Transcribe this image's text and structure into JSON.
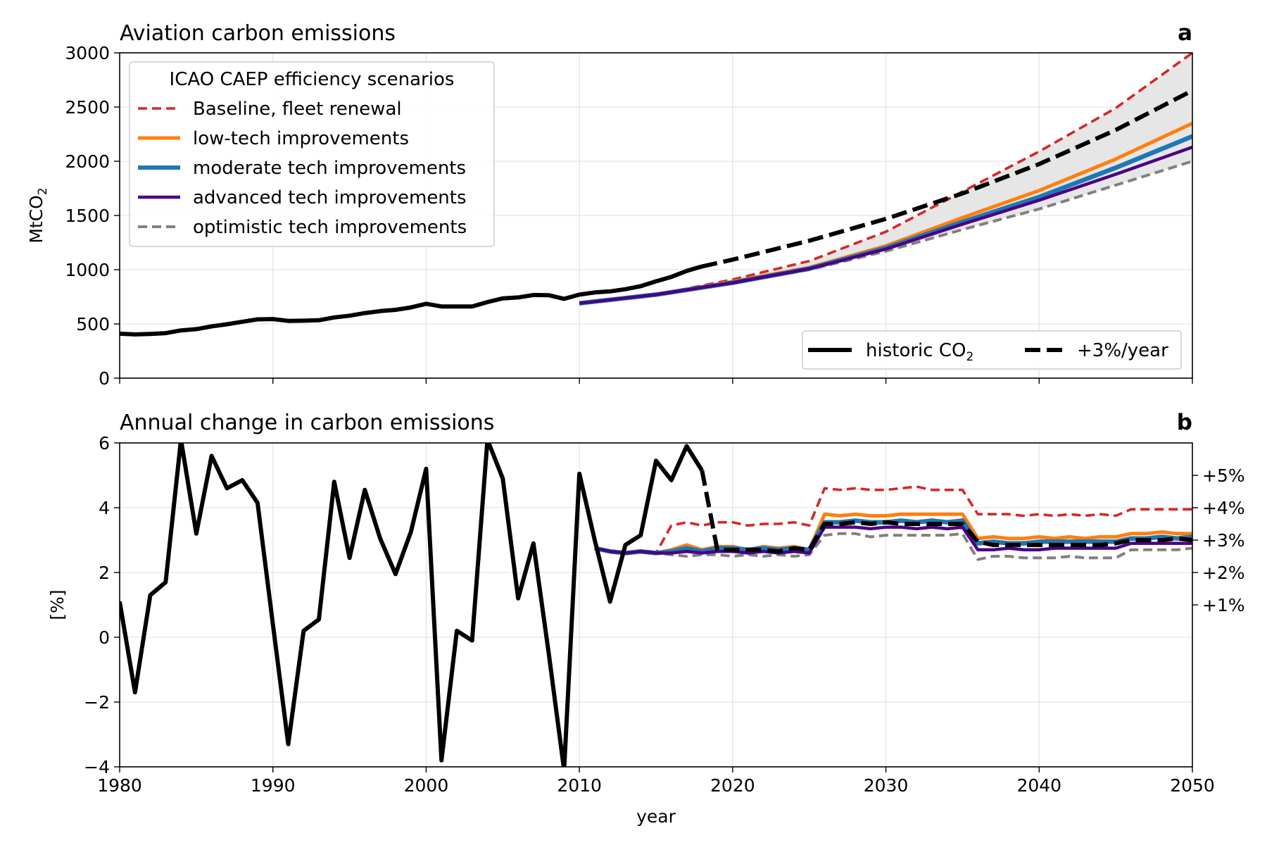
{
  "colors": {
    "historic": "#000000",
    "baseline": "#d62728",
    "low": "#ff7f0e",
    "moderate": "#1f77b4",
    "advanced": "#4b0082",
    "optimistic": "#808080",
    "band": "#e6e6e6"
  },
  "chart_data": [
    {
      "type": "line",
      "title": "Aviation carbon emissions",
      "panel_letter": "a",
      "xlabel": "",
      "ylabel": "MtCO",
      "ylabel_sub": "2",
      "xlim": [
        1980,
        2050
      ],
      "ylim": [
        0,
        3000
      ],
      "xticks": [
        1980,
        1990,
        2000,
        2010,
        2020,
        2030,
        2040,
        2050
      ],
      "yticks": [
        0,
        500,
        1000,
        1500,
        2000,
        2500,
        3000
      ],
      "grid": true,
      "legend_title": "ICAO CAEP efficiency scenarios",
      "legend_position": "top-left",
      "legend2_position": "bottom-right",
      "shaded_band": {
        "between": [
          "optimistic",
          "baseline"
        ],
        "from_year": 2010
      },
      "series": [
        {
          "name": "historic CO",
          "name_sub": "2",
          "key": "historic",
          "style": "solid",
          "x": [
            1980,
            1981,
            1982,
            1983,
            1984,
            1985,
            1986,
            1987,
            1988,
            1989,
            1990,
            1991,
            1992,
            1993,
            1994,
            1995,
            1996,
            1997,
            1998,
            1999,
            2000,
            2001,
            2002,
            2003,
            2004,
            2005,
            2006,
            2007,
            2008,
            2009,
            2010,
            2011,
            2012,
            2013,
            2014,
            2015,
            2016,
            2017,
            2018
          ],
          "y": [
            410,
            403,
            408,
            415,
            440,
            452,
            477,
            497,
            520,
            542,
            545,
            528,
            530,
            534,
            560,
            576,
            600,
            618,
            630,
            652,
            686,
            661,
            661,
            661,
            701,
            736,
            744,
            767,
            765,
            731,
            770,
            790,
            800,
            820,
            848,
            893,
            934,
            988,
            1030
          ]
        },
        {
          "name": "+3%/year",
          "key": "plus3",
          "style": "dashed",
          "x": [
            2018,
            2020,
            2025,
            2030,
            2035,
            2040,
            2045,
            2050
          ],
          "y": [
            1030,
            1093,
            1267,
            1469,
            1703,
            1974,
            2288,
            2652
          ]
        },
        {
          "name": "Baseline, fleet renewal",
          "key": "baseline",
          "style": "dashed",
          "x": [
            2010,
            2015,
            2020,
            2025,
            2030,
            2035,
            2040,
            2045,
            2050
          ],
          "y": [
            690,
            770,
            910,
            1080,
            1350,
            1720,
            2090,
            2490,
            3000
          ]
        },
        {
          "name": "low-tech improvements",
          "key": "low",
          "style": "solid",
          "x": [
            2010,
            2015,
            2020,
            2025,
            2030,
            2035,
            2040,
            2045,
            2050
          ],
          "y": [
            690,
            770,
            890,
            1020,
            1220,
            1480,
            1730,
            2020,
            2350
          ]
        },
        {
          "name": "moderate tech improvements",
          "key": "moderate",
          "style": "solid",
          "x": [
            2010,
            2015,
            2020,
            2025,
            2030,
            2035,
            2040,
            2045,
            2050
          ],
          "y": [
            690,
            770,
            880,
            1010,
            1200,
            1440,
            1670,
            1940,
            2230
          ]
        },
        {
          "name": "advanced tech improvements",
          "key": "advanced",
          "style": "solid",
          "x": [
            2010,
            2015,
            2020,
            2025,
            2030,
            2035,
            2040,
            2045,
            2050
          ],
          "y": [
            690,
            770,
            880,
            1010,
            1190,
            1420,
            1640,
            1880,
            2130
          ]
        },
        {
          "name": "optimistic tech improvements",
          "key": "optimistic",
          "style": "dashed",
          "x": [
            2010,
            2015,
            2020,
            2025,
            2030,
            2035,
            2040,
            2045,
            2050
          ],
          "y": [
            690,
            770,
            875,
            1000,
            1170,
            1370,
            1560,
            1780,
            2000
          ]
        }
      ]
    },
    {
      "type": "line",
      "title": "Annual change in carbon emissions",
      "panel_letter": "b",
      "xlabel": "year",
      "ylabel": "[%]",
      "xlim": [
        1980,
        2050
      ],
      "ylim": [
        -4,
        6
      ],
      "xticks": [
        1980,
        1990,
        2000,
        2010,
        2020,
        2030,
        2040,
        2050
      ],
      "yticks": [
        -4,
        -2,
        0,
        2,
        4,
        6
      ],
      "ytick_labels": [
        "−4",
        "−2",
        "0",
        "2",
        "4",
        "6"
      ],
      "secondary_yticks": [
        1,
        2,
        3,
        4,
        5
      ],
      "secondary_ytick_labels": [
        "+1%",
        "+2%",
        "+3%",
        "+4%",
        "+5%"
      ],
      "grid": true,
      "series": [
        {
          "key": "historic",
          "style": "solid",
          "x": [
            1980,
            1981,
            1982,
            1983,
            1984,
            1985,
            1986,
            1987,
            1988,
            1989,
            1990,
            1991,
            1992,
            1993,
            1994,
            1995,
            1996,
            1997,
            1998,
            1999,
            2000,
            2001,
            2002,
            2003,
            2004,
            2005,
            2006,
            2007,
            2008,
            2009,
            2010,
            2011,
            2012,
            2013,
            2014,
            2015,
            2016,
            2017,
            2018
          ],
          "y": [
            1.1,
            -1.7,
            1.3,
            1.7,
            6.1,
            3.2,
            5.6,
            4.6,
            4.85,
            4.15,
            0.4,
            -3.3,
            0.2,
            0.55,
            4.8,
            2.45,
            4.55,
            3.05,
            1.95,
            3.25,
            5.2,
            -3.8,
            0.2,
            -0.1,
            6.1,
            4.9,
            1.2,
            2.9,
            -0.5,
            -4.1,
            5.05,
            3.0,
            1.1,
            2.85,
            3.15,
            5.45,
            4.85,
            5.9,
            5.15
          ]
        },
        {
          "key": "plus3",
          "style": "dashed",
          "x": [
            2018,
            2019,
            2020,
            2021,
            2022,
            2023,
            2024,
            2025,
            2026,
            2027,
            2028,
            2029,
            2030,
            2031,
            2032,
            2033,
            2034,
            2035,
            2036,
            2037,
            2038,
            2039,
            2040,
            2041,
            2042,
            2043,
            2044,
            2045,
            2046,
            2047,
            2048,
            2049,
            2050
          ],
          "y": [
            5.15,
            2.7,
            2.7,
            2.7,
            2.7,
            2.65,
            2.75,
            2.7,
            3.5,
            3.5,
            3.55,
            3.5,
            3.55,
            3.5,
            3.5,
            3.5,
            3.5,
            3.5,
            2.95,
            2.85,
            2.85,
            2.85,
            2.85,
            2.85,
            2.85,
            2.85,
            2.85,
            2.9,
            3.0,
            3.0,
            3.0,
            3.05,
            3.0
          ]
        },
        {
          "key": "baseline",
          "style": "dashed",
          "x": [
            2011,
            2012,
            2013,
            2014,
            2015,
            2016,
            2017,
            2018,
            2019,
            2020,
            2021,
            2022,
            2023,
            2024,
            2025,
            2026,
            2027,
            2028,
            2029,
            2030,
            2031,
            2032,
            2033,
            2034,
            2035,
            2036,
            2037,
            2038,
            2039,
            2040,
            2041,
            2042,
            2043,
            2044,
            2045,
            2046,
            2047,
            2048,
            2049,
            2050
          ],
          "y": [
            2.75,
            2.65,
            2.6,
            2.65,
            2.6,
            3.45,
            3.55,
            3.45,
            3.55,
            3.55,
            3.45,
            3.5,
            3.5,
            3.55,
            3.45,
            4.6,
            4.55,
            4.6,
            4.55,
            4.55,
            4.6,
            4.65,
            4.55,
            4.55,
            4.55,
            3.8,
            3.8,
            3.8,
            3.75,
            3.8,
            3.75,
            3.8,
            3.75,
            3.8,
            3.75,
            3.95,
            3.95,
            3.95,
            3.95,
            3.95
          ]
        },
        {
          "key": "low",
          "style": "solid",
          "x": [
            2011,
            2012,
            2013,
            2014,
            2015,
            2016,
            2017,
            2018,
            2019,
            2020,
            2021,
            2022,
            2023,
            2024,
            2025,
            2026,
            2027,
            2028,
            2029,
            2030,
            2031,
            2032,
            2033,
            2034,
            2035,
            2036,
            2037,
            2038,
            2039,
            2040,
            2041,
            2042,
            2043,
            2044,
            2045,
            2046,
            2047,
            2048,
            2049,
            2050
          ],
          "y": [
            2.75,
            2.65,
            2.6,
            2.65,
            2.6,
            2.7,
            2.85,
            2.7,
            2.8,
            2.8,
            2.7,
            2.8,
            2.75,
            2.8,
            2.7,
            3.8,
            3.75,
            3.8,
            3.75,
            3.75,
            3.8,
            3.8,
            3.8,
            3.8,
            3.8,
            3.05,
            3.1,
            3.05,
            3.05,
            3.1,
            3.05,
            3.1,
            3.05,
            3.1,
            3.1,
            3.2,
            3.2,
            3.25,
            3.2,
            3.2
          ]
        },
        {
          "key": "moderate",
          "style": "solid",
          "x": [
            2011,
            2012,
            2013,
            2014,
            2015,
            2016,
            2017,
            2018,
            2019,
            2020,
            2021,
            2022,
            2023,
            2024,
            2025,
            2026,
            2027,
            2028,
            2029,
            2030,
            2031,
            2032,
            2033,
            2034,
            2035,
            2036,
            2037,
            2038,
            2039,
            2040,
            2041,
            2042,
            2043,
            2044,
            2045,
            2046,
            2047,
            2048,
            2049,
            2050
          ],
          "y": [
            2.75,
            2.65,
            2.6,
            2.65,
            2.6,
            2.65,
            2.75,
            2.65,
            2.75,
            2.75,
            2.7,
            2.75,
            2.7,
            2.75,
            2.7,
            3.55,
            3.55,
            3.6,
            3.55,
            3.55,
            3.6,
            3.55,
            3.6,
            3.55,
            3.6,
            2.9,
            2.95,
            2.9,
            2.9,
            2.95,
            2.95,
            2.95,
            2.95,
            2.95,
            2.95,
            3.05,
            3.05,
            3.1,
            3.05,
            3.1
          ]
        },
        {
          "key": "advanced",
          "style": "solid",
          "x": [
            2011,
            2012,
            2013,
            2014,
            2015,
            2016,
            2017,
            2018,
            2019,
            2020,
            2021,
            2022,
            2023,
            2024,
            2025,
            2026,
            2027,
            2028,
            2029,
            2030,
            2031,
            2032,
            2033,
            2034,
            2035,
            2036,
            2037,
            2038,
            2039,
            2040,
            2041,
            2042,
            2043,
            2044,
            2045,
            2046,
            2047,
            2048,
            2049,
            2050
          ],
          "y": [
            2.75,
            2.65,
            2.6,
            2.65,
            2.6,
            2.6,
            2.65,
            2.6,
            2.65,
            2.65,
            2.6,
            2.65,
            2.6,
            2.65,
            2.6,
            3.4,
            3.4,
            3.4,
            3.35,
            3.4,
            3.4,
            3.35,
            3.4,
            3.35,
            3.4,
            2.7,
            2.7,
            2.75,
            2.7,
            2.7,
            2.75,
            2.75,
            2.75,
            2.75,
            2.75,
            2.9,
            2.9,
            2.9,
            2.9,
            2.9
          ]
        },
        {
          "key": "optimistic",
          "style": "dashed",
          "x": [
            2011,
            2012,
            2013,
            2014,
            2015,
            2016,
            2017,
            2018,
            2019,
            2020,
            2021,
            2022,
            2023,
            2024,
            2025,
            2026,
            2027,
            2028,
            2029,
            2030,
            2031,
            2032,
            2033,
            2034,
            2035,
            2036,
            2037,
            2038,
            2039,
            2040,
            2041,
            2042,
            2043,
            2044,
            2045,
            2046,
            2047,
            2048,
            2049,
            2050
          ],
          "y": [
            2.75,
            2.65,
            2.6,
            2.65,
            2.6,
            2.55,
            2.5,
            2.55,
            2.55,
            2.5,
            2.55,
            2.5,
            2.55,
            2.5,
            2.55,
            3.15,
            3.2,
            3.2,
            3.1,
            3.15,
            3.15,
            3.15,
            3.15,
            3.15,
            3.2,
            2.4,
            2.5,
            2.5,
            2.45,
            2.45,
            2.45,
            2.5,
            2.45,
            2.45,
            2.45,
            2.7,
            2.7,
            2.7,
            2.7,
            2.75
          ]
        }
      ]
    }
  ]
}
